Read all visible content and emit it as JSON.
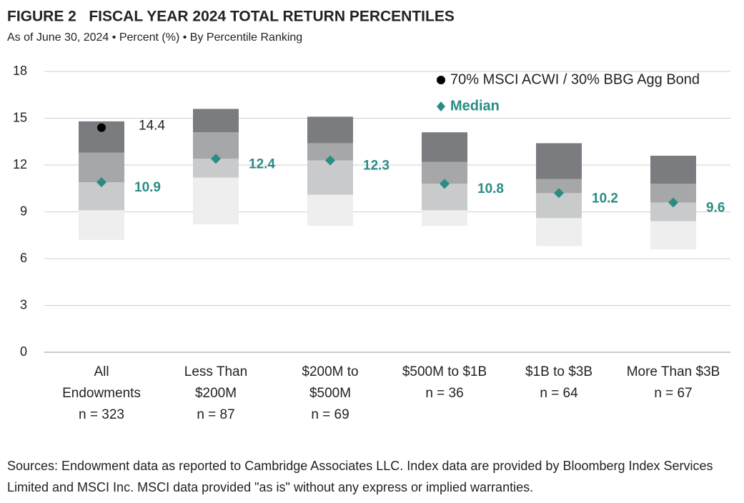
{
  "chart_data": {
    "type": "floating_bar",
    "title": "FIGURE 2   FISCAL YEAR 2024 TOTAL RETURN PERCENTILES",
    "subtitle": "As of June 30, 2024 • Percent (%) • By Percentile Ranking",
    "categories": [
      [
        "All",
        "Endowments",
        "n = 323"
      ],
      [
        "Less Than",
        "$200M",
        "n = 87"
      ],
      [
        "$200M to",
        "$500M",
        "n = 69"
      ],
      [
        "$500M to $1B",
        "n = 36"
      ],
      [
        "$1B to $3B",
        "n = 64"
      ],
      [
        "More Than $3B",
        "n = 67"
      ]
    ],
    "percentiles": [
      [
        7.2,
        9.1,
        12.8,
        14.8
      ],
      [
        8.2,
        11.2,
        14.1,
        15.6
      ],
      [
        8.1,
        10.1,
        13.4,
        15.1
      ],
      [
        8.1,
        9.1,
        12.2,
        14.1
      ],
      [
        6.8,
        8.6,
        11.1,
        13.4
      ],
      [
        6.6,
        8.4,
        10.8,
        12.6
      ]
    ],
    "segment_colors": [
      "#edeeed",
      "#c9cacc",
      "#a6a7a9",
      "#7b7c7f"
    ],
    "series": [
      {
        "name": "70% MSCI ACWI / 30% BBG Agg Bond",
        "color": "#000000",
        "values": [
          14.4,
          null,
          null,
          null,
          null,
          null
        ]
      },
      {
        "name": "Median",
        "color": "#2a8c84",
        "values": [
          10.9,
          12.4,
          12.3,
          10.8,
          10.2,
          9.6
        ]
      }
    ],
    "ylim": [
      0,
      18
    ],
    "yticks": [
      0,
      3,
      6,
      9,
      12,
      15,
      18
    ],
    "grid": true,
    "source": "Sources: Endowment data as reported to Cambridge Associates LLC. Index data are provided by Bloomberg Index Services Limited and MSCI Inc. MSCI data provided \"as is\" without any express or implied warranties."
  }
}
